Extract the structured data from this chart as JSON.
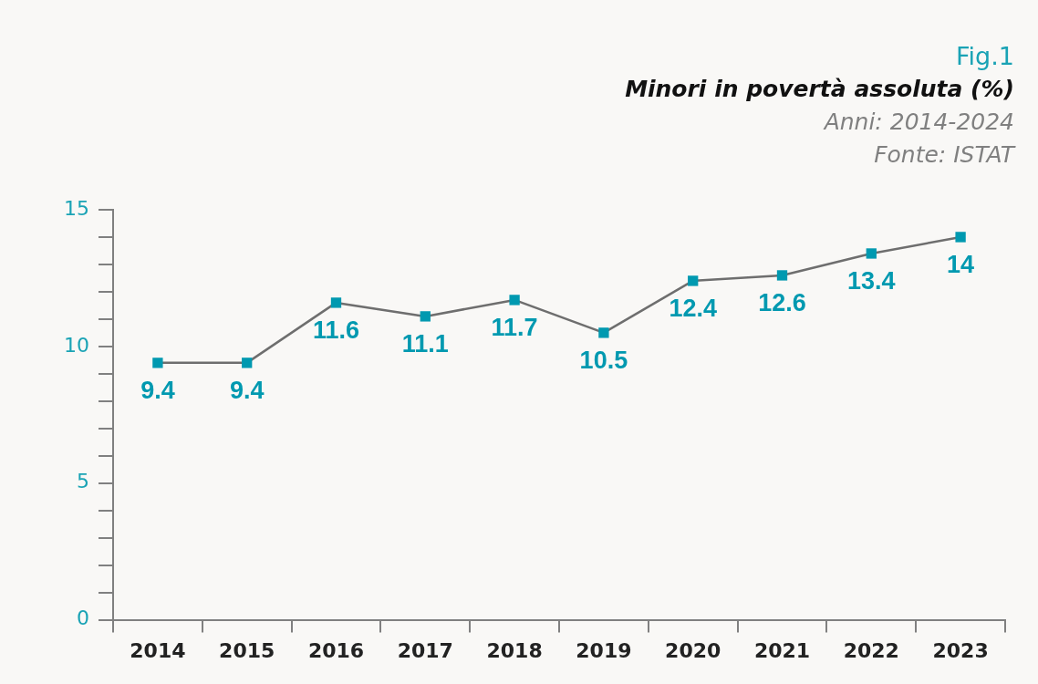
{
  "chart_data": {
    "type": "line",
    "title": "Fig.1",
    "subtitle": "Minori in povertà assoluta (%)",
    "annotations": [
      "Anni: 2014-2024",
      "Fonte: ISTAT"
    ],
    "categories": [
      "2014",
      "2015",
      "2016",
      "2017",
      "2018",
      "2019",
      "2020",
      "2021",
      "2022",
      "2023"
    ],
    "series": [
      {
        "color": "#6e6e6e",
        "values": [
          9.4,
          9.4,
          11.6,
          11.1,
          11.7,
          10.5,
          12.4,
          12.6,
          13.4,
          14
        ]
      }
    ],
    "ylim": [
      0,
      15
    ],
    "yticks": [
      0,
      {
        "value": 1,
        "label": null
      },
      {
        "value": 2,
        "label": null
      },
      {
        "value": 3,
        "label": null
      },
      {
        "value": 4,
        "label": null
      },
      5,
      {
        "value": 6,
        "label": null
      },
      {
        "value": 7,
        "label": null
      },
      {
        "value": 8,
        "label": null
      },
      {
        "value": 9,
        "label": null
      },
      10,
      {
        "value": 11,
        "label": null
      },
      {
        "value": 12,
        "label": null
      },
      {
        "value": 13,
        "label": null
      },
      {
        "value": 14,
        "label": null
      },
      15
    ],
    "marker": "square",
    "line_style": "solid",
    "data_labels": true,
    "legend": false,
    "grid": false
  }
}
